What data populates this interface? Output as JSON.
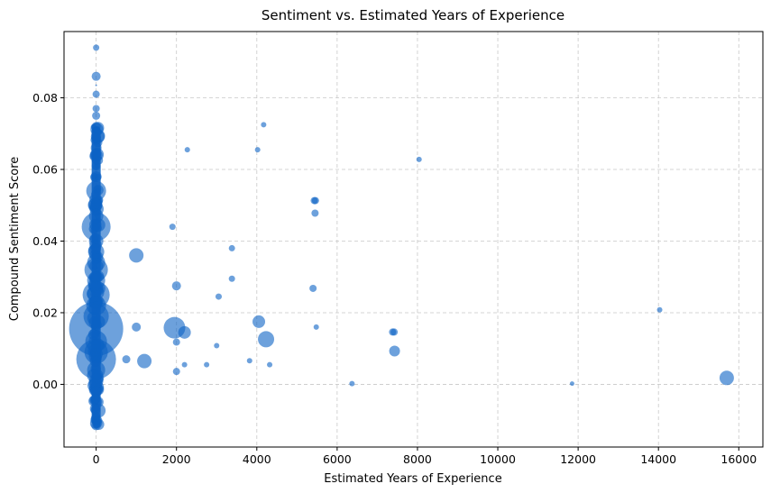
{
  "chart_data": {
    "type": "scatter",
    "title": "Sentiment vs. Estimated Years of Experience",
    "xlabel": "Estimated Years of Experience",
    "ylabel": "Compound Sentiment Score",
    "xlim": [
      -800,
      16600
    ],
    "ylim": [
      -0.0175,
      0.0985
    ],
    "xticks": [
      0,
      2000,
      4000,
      6000,
      8000,
      10000,
      12000,
      14000,
      16000
    ],
    "yticks": [
      0.0,
      0.02,
      0.04,
      0.06,
      0.08
    ],
    "xtick_labels": [
      "0",
      "2000",
      "4000",
      "6000",
      "8000",
      "10000",
      "12000",
      "14000",
      "16000"
    ],
    "ytick_labels": [
      "0.00",
      "0.02",
      "0.04",
      "0.06",
      "0.08"
    ],
    "grid": true,
    "marker_color": "#0b63c4",
    "marker_alpha": 0.6,
    "points": [
      {
        "x": 0,
        "y": 0.094,
        "s": 3.5
      },
      {
        "x": 0,
        "y": 0.086,
        "s": 5
      },
      {
        "x": 0,
        "y": 0.081,
        "s": 4
      },
      {
        "x": 0,
        "y": 0.0835,
        "s": 1
      },
      {
        "x": 0,
        "y": 0.077,
        "s": 4
      },
      {
        "x": 0,
        "y": 0.075,
        "s": 4.5
      },
      {
        "x": 0,
        "y": 0.072,
        "s": 5
      },
      {
        "x": 0,
        "y": 0.069,
        "s": 5
      },
      {
        "x": 0,
        "y": 0.066,
        "s": 6
      },
      {
        "x": 0,
        "y": 0.064,
        "s": 7
      },
      {
        "x": 0,
        "y": 0.061,
        "s": 5
      },
      {
        "x": 0,
        "y": 0.058,
        "s": 6
      },
      {
        "x": 0,
        "y": 0.054,
        "s": 11
      },
      {
        "x": 0,
        "y": 0.05,
        "s": 7
      },
      {
        "x": 0,
        "y": 0.047,
        "s": 8
      },
      {
        "x": 0,
        "y": 0.044,
        "s": 16
      },
      {
        "x": 0,
        "y": 0.04,
        "s": 8
      },
      {
        "x": 0,
        "y": 0.037,
        "s": 9
      },
      {
        "x": 0,
        "y": 0.034,
        "s": 10
      },
      {
        "x": 0,
        "y": 0.032,
        "s": 13
      },
      {
        "x": 0,
        "y": 0.029,
        "s": 10
      },
      {
        "x": 0,
        "y": 0.025,
        "s": 15
      },
      {
        "x": 0,
        "y": 0.022,
        "s": 11
      },
      {
        "x": 0,
        "y": 0.019,
        "s": 14
      },
      {
        "x": 0,
        "y": 0.0155,
        "s": 30
      },
      {
        "x": 0,
        "y": 0.012,
        "s": 12
      },
      {
        "x": 0,
        "y": 0.009,
        "s": 13
      },
      {
        "x": 0,
        "y": 0.007,
        "s": 22
      },
      {
        "x": 0,
        "y": 0.004,
        "s": 10
      },
      {
        "x": 0,
        "y": 0.001,
        "s": 8
      },
      {
        "x": 0,
        "y": -0.002,
        "s": 6
      },
      {
        "x": 0,
        "y": -0.004,
        "s": 5
      },
      {
        "x": 0,
        "y": -0.0065,
        "s": 4
      },
      {
        "x": 0,
        "y": -0.0088,
        "s": 4.5
      },
      {
        "x": 0,
        "y": -0.0113,
        "s": 4
      },
      {
        "x": 1000,
        "y": 0.036,
        "s": 8
      },
      {
        "x": 1000,
        "y": 0.016,
        "s": 5
      },
      {
        "x": 750,
        "y": 0.007,
        "s": 4.5
      },
      {
        "x": 1200,
        "y": 0.0065,
        "s": 8
      },
      {
        "x": 1900,
        "y": 0.044,
        "s": 3.5
      },
      {
        "x": 2000,
        "y": 0.0275,
        "s": 5
      },
      {
        "x": 1950,
        "y": 0.0158,
        "s": 12
      },
      {
        "x": 2200,
        "y": 0.0145,
        "s": 7
      },
      {
        "x": 2000,
        "y": 0.0118,
        "s": 4
      },
      {
        "x": 2000,
        "y": 0.0036,
        "s": 4
      },
      {
        "x": 2200,
        "y": 0.0055,
        "s": 3
      },
      {
        "x": 2270,
        "y": 0.0655,
        "s": 3
      },
      {
        "x": 2750,
        "y": 0.0055,
        "s": 3
      },
      {
        "x": 3000,
        "y": 0.0108,
        "s": 3
      },
      {
        "x": 3050,
        "y": 0.0245,
        "s": 3.5
      },
      {
        "x": 3380,
        "y": 0.038,
        "s": 3.5
      },
      {
        "x": 3380,
        "y": 0.0295,
        "s": 3.5
      },
      {
        "x": 3820,
        "y": 0.0066,
        "s": 3
      },
      {
        "x": 4020,
        "y": 0.0655,
        "s": 3
      },
      {
        "x": 4050,
        "y": 0.0175,
        "s": 7
      },
      {
        "x": 4170,
        "y": 0.0725,
        "s": 3
      },
      {
        "x": 4230,
        "y": 0.0126,
        "s": 9
      },
      {
        "x": 4320,
        "y": 0.0055,
        "s": 3
      },
      {
        "x": 5400,
        "y": 0.0268,
        "s": 4
      },
      {
        "x": 5430,
        "y": 0.0513,
        "s": 4
      },
      {
        "x": 5460,
        "y": 0.0513,
        "s": 4
      },
      {
        "x": 5450,
        "y": 0.0478,
        "s": 4
      },
      {
        "x": 5480,
        "y": 0.016,
        "s": 3
      },
      {
        "x": 6370,
        "y": 0.0002,
        "s": 3
      },
      {
        "x": 7380,
        "y": 0.0146,
        "s": 4
      },
      {
        "x": 7420,
        "y": 0.0146,
        "s": 4
      },
      {
        "x": 7430,
        "y": 0.0093,
        "s": 6
      },
      {
        "x": 8040,
        "y": 0.0628,
        "s": 3
      },
      {
        "x": 11850,
        "y": 0.0002,
        "s": 2.5
      },
      {
        "x": 14030,
        "y": 0.0208,
        "s": 3
      },
      {
        "x": 15700,
        "y": 0.0018,
        "s": 8
      }
    ],
    "column": {
      "x": 0,
      "y_from": -0.0115,
      "y_to": 0.072,
      "note": "dense vertical stack of overlapping markers at x = 0"
    }
  }
}
